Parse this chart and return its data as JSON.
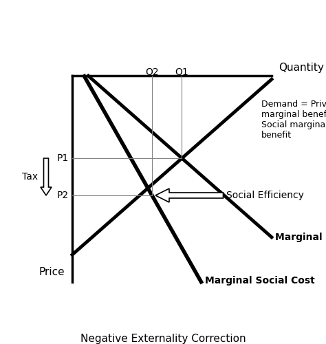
{
  "title": "Negative Externality Correction",
  "xlabel": "Quantity",
  "ylabel": "Price",
  "background_color": "#ffffff",
  "xlim": [
    0,
    10
  ],
  "ylim": [
    0,
    10
  ],
  "q1": 5.5,
  "q2": 4.0,
  "p1": 4.0,
  "p2": 5.8,
  "tax_label": "Tax",
  "price_label": "Price",
  "q1_label": "Q1",
  "q2_label": "Q2",
  "p1_label": "P1",
  "p2_label": "P2",
  "msc_label": "Marginal Social Cost",
  "mpc_label": "Marginal Private Cost",
  "demand_label": "Demand = Private\nmarginal benefit =\nSocial marginal\nbenefit",
  "social_efficiency_label": "Social Efficiency",
  "d_slope": -0.85,
  "mpc_slope": 0.85,
  "msc_slope": 1.7,
  "lw_thick": 3.5,
  "lw_axis": 2.5
}
